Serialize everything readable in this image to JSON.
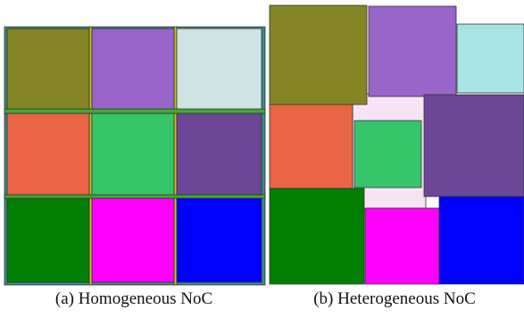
{
  "figure": {
    "captions": [
      "(a) Homogeneous NoC",
      "(b) Heterogeneous NoC"
    ]
  }
}
